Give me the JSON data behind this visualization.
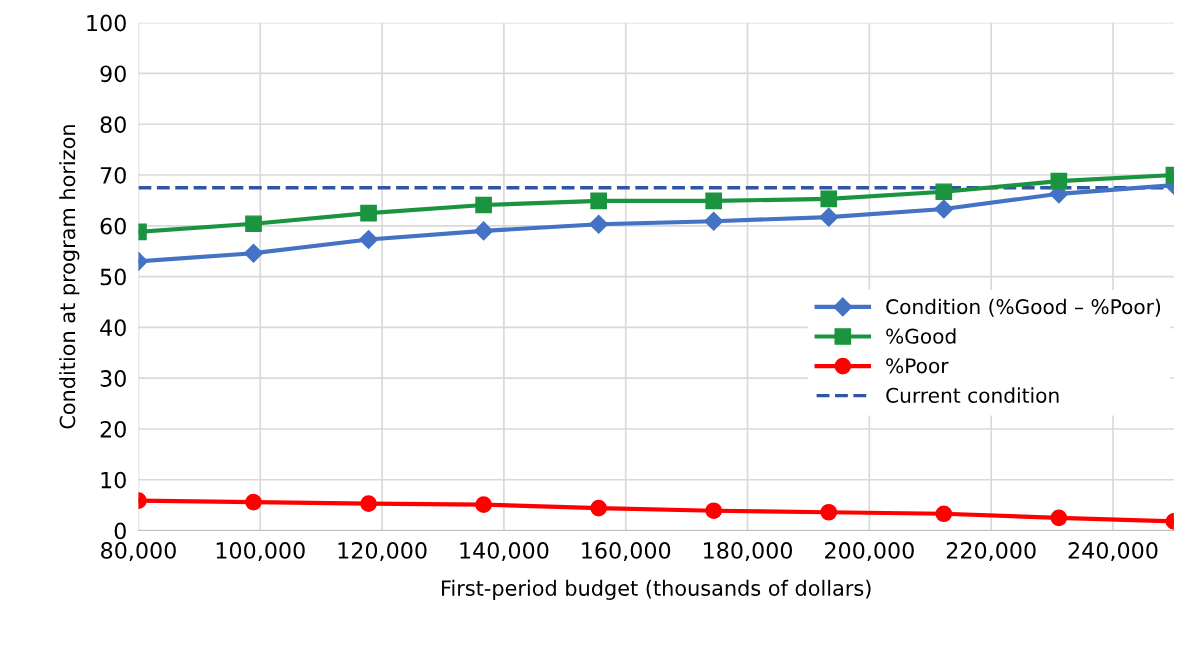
{
  "chart_data": {
    "type": "line",
    "xlabel": "First-period budget (thousands of dollars)",
    "ylabel": "Condition at program horizon",
    "x": [
      80000,
      98889,
      117778,
      136667,
      155556,
      174444,
      193333,
      212222,
      231111,
      250000
    ],
    "series": [
      {
        "name": "Condition (%Good – %Poor)",
        "color": "#4472c4",
        "marker": "diamond",
        "values": [
          53,
          54.6,
          57.3,
          59,
          60.3,
          60.9,
          61.7,
          63.3,
          66.3,
          68
        ]
      },
      {
        "name": "%Good",
        "color": "#1b9440",
        "marker": "square",
        "values": [
          58.8,
          60.4,
          62.5,
          64.1,
          64.9,
          64.9,
          65.3,
          66.7,
          68.8,
          70
        ]
      },
      {
        "name": "%Poor",
        "color": "#ff0000",
        "marker": "circle",
        "values": [
          5.9,
          5.6,
          5.3,
          5.1,
          4.4,
          3.9,
          3.6,
          3.3,
          2.5,
          1.8
        ]
      }
    ],
    "ref_lines": [
      {
        "axis": "y",
        "value": 67.5,
        "label": "Current condition",
        "color": "#2f55a4",
        "line_style": "dashed"
      }
    ],
    "xlim": [
      80000,
      250000
    ],
    "xticks": [
      {
        "value": 80000,
        "label": "80,000"
      },
      {
        "value": 100000,
        "label": "100,000"
      },
      {
        "value": 120000,
        "label": "120,000"
      },
      {
        "value": 140000,
        "label": "140,000"
      },
      {
        "value": 160000,
        "label": "160,000"
      },
      {
        "value": 180000,
        "label": "180,000"
      },
      {
        "value": 200000,
        "label": "200,000"
      },
      {
        "value": 220000,
        "label": "220,000"
      },
      {
        "value": 240000,
        "label": "240,000"
      }
    ],
    "ylim": [
      0,
      100
    ],
    "yticks": [
      0,
      10,
      20,
      30,
      40,
      50,
      60,
      70,
      80,
      90,
      100
    ],
    "grid": true,
    "legend": "right",
    "line_style": "solid"
  }
}
